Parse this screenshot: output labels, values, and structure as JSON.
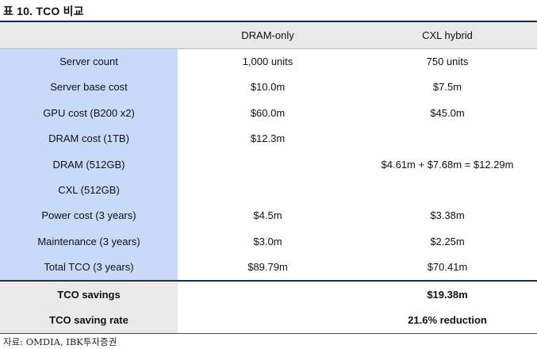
{
  "caption": "표 10. TCO 비교",
  "columns": [
    "",
    "DRAM-only",
    "CXL hybrid"
  ],
  "rows": [
    {
      "label": "Server count",
      "dram": "1,000 units",
      "cxl": "750 units"
    },
    {
      "label": "Server base cost",
      "dram": "$10.0m",
      "cxl": "$7.5m"
    },
    {
      "label": "GPU cost (B200 x2)",
      "dram": "$60.0m",
      "cxl": "$45.0m"
    },
    {
      "label": "DRAM cost (1TB)",
      "dram": "$12.3m",
      "cxl": ""
    },
    {
      "label": "DRAM (512GB)",
      "dram": "",
      "cxl": "$4.61m + $7.68m = $12.29m"
    },
    {
      "label": "CXL (512GB)",
      "dram": "",
      "cxl": ""
    },
    {
      "label": "Power cost (3 years)",
      "dram": "$4.5m",
      "cxl": "$3.38m"
    },
    {
      "label": "Maintenance (3 years)",
      "dram": "$3.0m",
      "cxl": "$2.25m"
    },
    {
      "label": "Total TCO (3 years)",
      "dram": "$89.79m",
      "cxl": "$70.41m"
    }
  ],
  "summary": [
    {
      "label": "TCO savings",
      "dram": "",
      "cxl": "$19.38m"
    },
    {
      "label": "TCO saving rate",
      "dram": "",
      "cxl": "21.6% reduction"
    }
  ],
  "source": "자료: OMDIA, IBK투자증권"
}
